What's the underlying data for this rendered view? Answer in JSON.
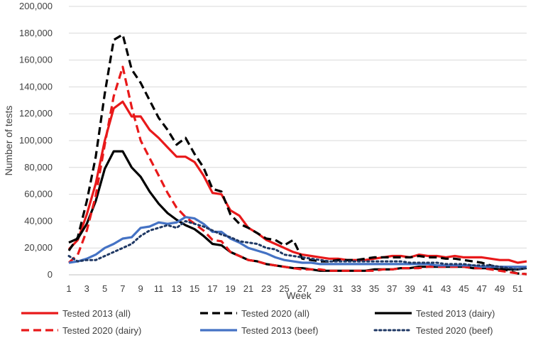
{
  "chart_data": {
    "type": "line",
    "title": "",
    "xlabel": "Week",
    "ylabel": "Number of tests",
    "ylim": [
      0,
      200000
    ],
    "xlim": [
      1,
      52
    ],
    "y_ticks": [
      0,
      20000,
      40000,
      60000,
      80000,
      100000,
      120000,
      140000,
      160000,
      180000,
      200000
    ],
    "y_tick_labels": [
      "0",
      "20,000",
      "40,000",
      "60,000",
      "80,000",
      "100,000",
      "120,000",
      "140,000",
      "160,000",
      "180,000",
      "200,000"
    ],
    "x_tick_labels": [
      "1",
      "3",
      "5",
      "7",
      "9",
      "11",
      "13",
      "15",
      "17",
      "19",
      "21",
      "23",
      "25",
      "27",
      "29",
      "31",
      "33",
      "35",
      "37",
      "39",
      "41",
      "43",
      "45",
      "47",
      "49",
      "51"
    ],
    "grid": "horizontal",
    "legend_position": "bottom",
    "series": [
      {
        "name": "Tested 2013 (all)",
        "color": "#e8191a",
        "dash": "solid",
        "values": [
          19000,
          26000,
          45000,
          68000,
          100000,
          124000,
          129000,
          118000,
          118000,
          108000,
          102000,
          95000,
          88000,
          88000,
          84000,
          74000,
          61000,
          60000,
          48000,
          44000,
          35000,
          31000,
          26000,
          23000,
          20000,
          17000,
          15000,
          14000,
          13000,
          12000,
          12000,
          11000,
          11000,
          11000,
          12000,
          13000,
          14000,
          14000,
          13000,
          15000,
          14000,
          14000,
          13000,
          14000,
          13000,
          13000,
          13000,
          12000,
          11000,
          11000,
          9000,
          10000
        ]
      },
      {
        "name": "Tested 2020 (all)",
        "color": "#000000",
        "dash": "dashed",
        "values": [
          18000,
          28000,
          55000,
          88000,
          135000,
          175000,
          179000,
          153000,
          143000,
          130000,
          117000,
          108000,
          97000,
          102000,
          90000,
          80000,
          64000,
          62000,
          45000,
          38000,
          35000,
          31000,
          27000,
          26000,
          22000,
          26000,
          12000,
          11000,
          10000,
          10000,
          11000,
          11000,
          11000,
          12000,
          13000,
          13000,
          13000,
          13000,
          13000,
          14000,
          13000,
          13000,
          12000,
          12000,
          11000,
          10000,
          9000,
          7000,
          5000,
          3000,
          1000,
          500
        ]
      },
      {
        "name": "Tested 2013 (dairy)",
        "color": "#000000",
        "dash": "solid",
        "values": [
          24000,
          27000,
          38000,
          55000,
          79000,
          92000,
          92000,
          80000,
          73000,
          62000,
          53000,
          46000,
          41000,
          37000,
          34000,
          29000,
          23000,
          22000,
          17000,
          14000,
          11000,
          10000,
          8000,
          7000,
          6000,
          5000,
          5000,
          4000,
          3000,
          3000,
          3000,
          3000,
          3000,
          3000,
          4000,
          4000,
          4000,
          5000,
          5000,
          6000,
          6000,
          6000,
          6000,
          6000,
          6000,
          5000,
          5000,
          5000,
          4000,
          4000,
          4000,
          5000
        ]
      },
      {
        "name": "Tested 2020 (dairy)",
        "color": "#e8191a",
        "dash": "dashed",
        "values": [
          9000,
          15000,
          33000,
          59000,
          97000,
          133000,
          155000,
          125000,
          100000,
          87000,
          74000,
          61000,
          50000,
          43000,
          38000,
          33000,
          26000,
          25000,
          17000,
          14000,
          11000,
          10000,
          8000,
          7000,
          6000,
          5000,
          4000,
          4000,
          4000,
          3000,
          3000,
          3000,
          3000,
          3000,
          3000,
          4000,
          4000,
          5000,
          5000,
          5000,
          6000,
          6000,
          6000,
          6000,
          6000,
          5000,
          5000,
          4000,
          3000,
          2000,
          1000,
          500
        ]
      },
      {
        "name": "Tested 2013 (beef)",
        "color": "#4472c4",
        "dash": "solid",
        "values": [
          9000,
          10000,
          12000,
          15000,
          20000,
          23000,
          27000,
          28000,
          35000,
          36000,
          39000,
          38000,
          39000,
          43000,
          42000,
          38000,
          32000,
          32000,
          27000,
          24000,
          20000,
          18000,
          16000,
          13000,
          11000,
          10000,
          9000,
          9000,
          8000,
          8000,
          8000,
          8000,
          8000,
          8000,
          8000,
          8000,
          8000,
          8000,
          8000,
          8000,
          8000,
          7000,
          7000,
          7000,
          7000,
          7000,
          6000,
          6000,
          6000,
          6000,
          6000,
          6000
        ]
      },
      {
        "name": "Tested 2020 (beef)",
        "color": "#1f3864",
        "dash": "dotted",
        "values": [
          14000,
          10000,
          11000,
          11000,
          14000,
          17000,
          20000,
          23000,
          29000,
          33000,
          35000,
          37000,
          35000,
          40000,
          38000,
          36000,
          33000,
          30000,
          28000,
          25000,
          24000,
          23000,
          20000,
          19000,
          15000,
          14000,
          13000,
          12000,
          11000,
          10000,
          10000,
          10000,
          10000,
          10000,
          10000,
          10000,
          10000,
          10000,
          9000,
          9000,
          9000,
          9000,
          8000,
          8000,
          8000,
          7000,
          7000,
          7000,
          6000,
          5000,
          4000,
          5000
        ]
      }
    ]
  }
}
